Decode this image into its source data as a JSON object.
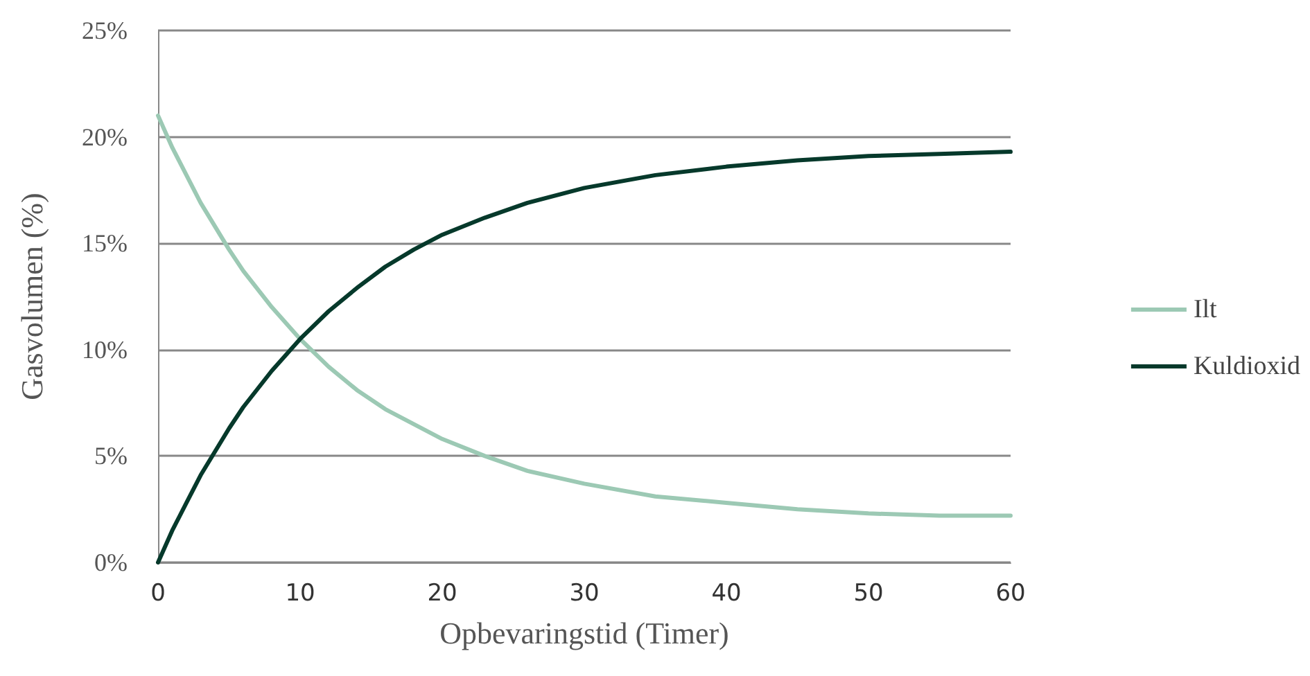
{
  "chart_data": {
    "type": "line",
    "xlabel": "Opbevaringstid (Timer)",
    "ylabel": "Gasvolumen (%)",
    "xlim": [
      0,
      60
    ],
    "xticks": [
      0,
      10,
      20,
      30,
      40,
      50,
      60
    ],
    "ylim": [
      0,
      25
    ],
    "yticks": [
      {
        "value": 0,
        "label": "0%"
      },
      {
        "value": 5,
        "label": "5%"
      },
      {
        "value": 10,
        "label": "10%"
      },
      {
        "value": 15,
        "label": "15%"
      },
      {
        "value": 20,
        "label": "20%"
      },
      {
        "value": 25,
        "label": "25%"
      }
    ],
    "grid": "y",
    "legend": "right",
    "marker": "none",
    "line_style": "solid",
    "x": [
      0,
      1,
      2,
      3,
      4,
      5,
      6,
      8,
      10,
      12,
      14,
      16,
      18,
      20,
      23,
      26,
      30,
      35,
      40,
      45,
      50,
      55,
      60
    ],
    "series": [
      {
        "name": "Ilt",
        "color": "#9cc9b4",
        "values": [
          21,
          19.5,
          18.2,
          16.9,
          15.8,
          14.7,
          13.7,
          12.0,
          10.5,
          9.2,
          8.1,
          7.2,
          6.5,
          5.8,
          5.0,
          4.3,
          3.7,
          3.1,
          2.8,
          2.5,
          2.3,
          2.2,
          2.2
        ]
      },
      {
        "name": "Kuldioxid",
        "color": "#06392b",
        "values": [
          0,
          1.5,
          2.8,
          4.1,
          5.2,
          6.3,
          7.3,
          9.0,
          10.5,
          11.8,
          12.9,
          13.9,
          14.7,
          15.4,
          16.2,
          16.9,
          17.6,
          18.2,
          18.6,
          18.9,
          19.1,
          19.2,
          19.3
        ]
      }
    ]
  }
}
